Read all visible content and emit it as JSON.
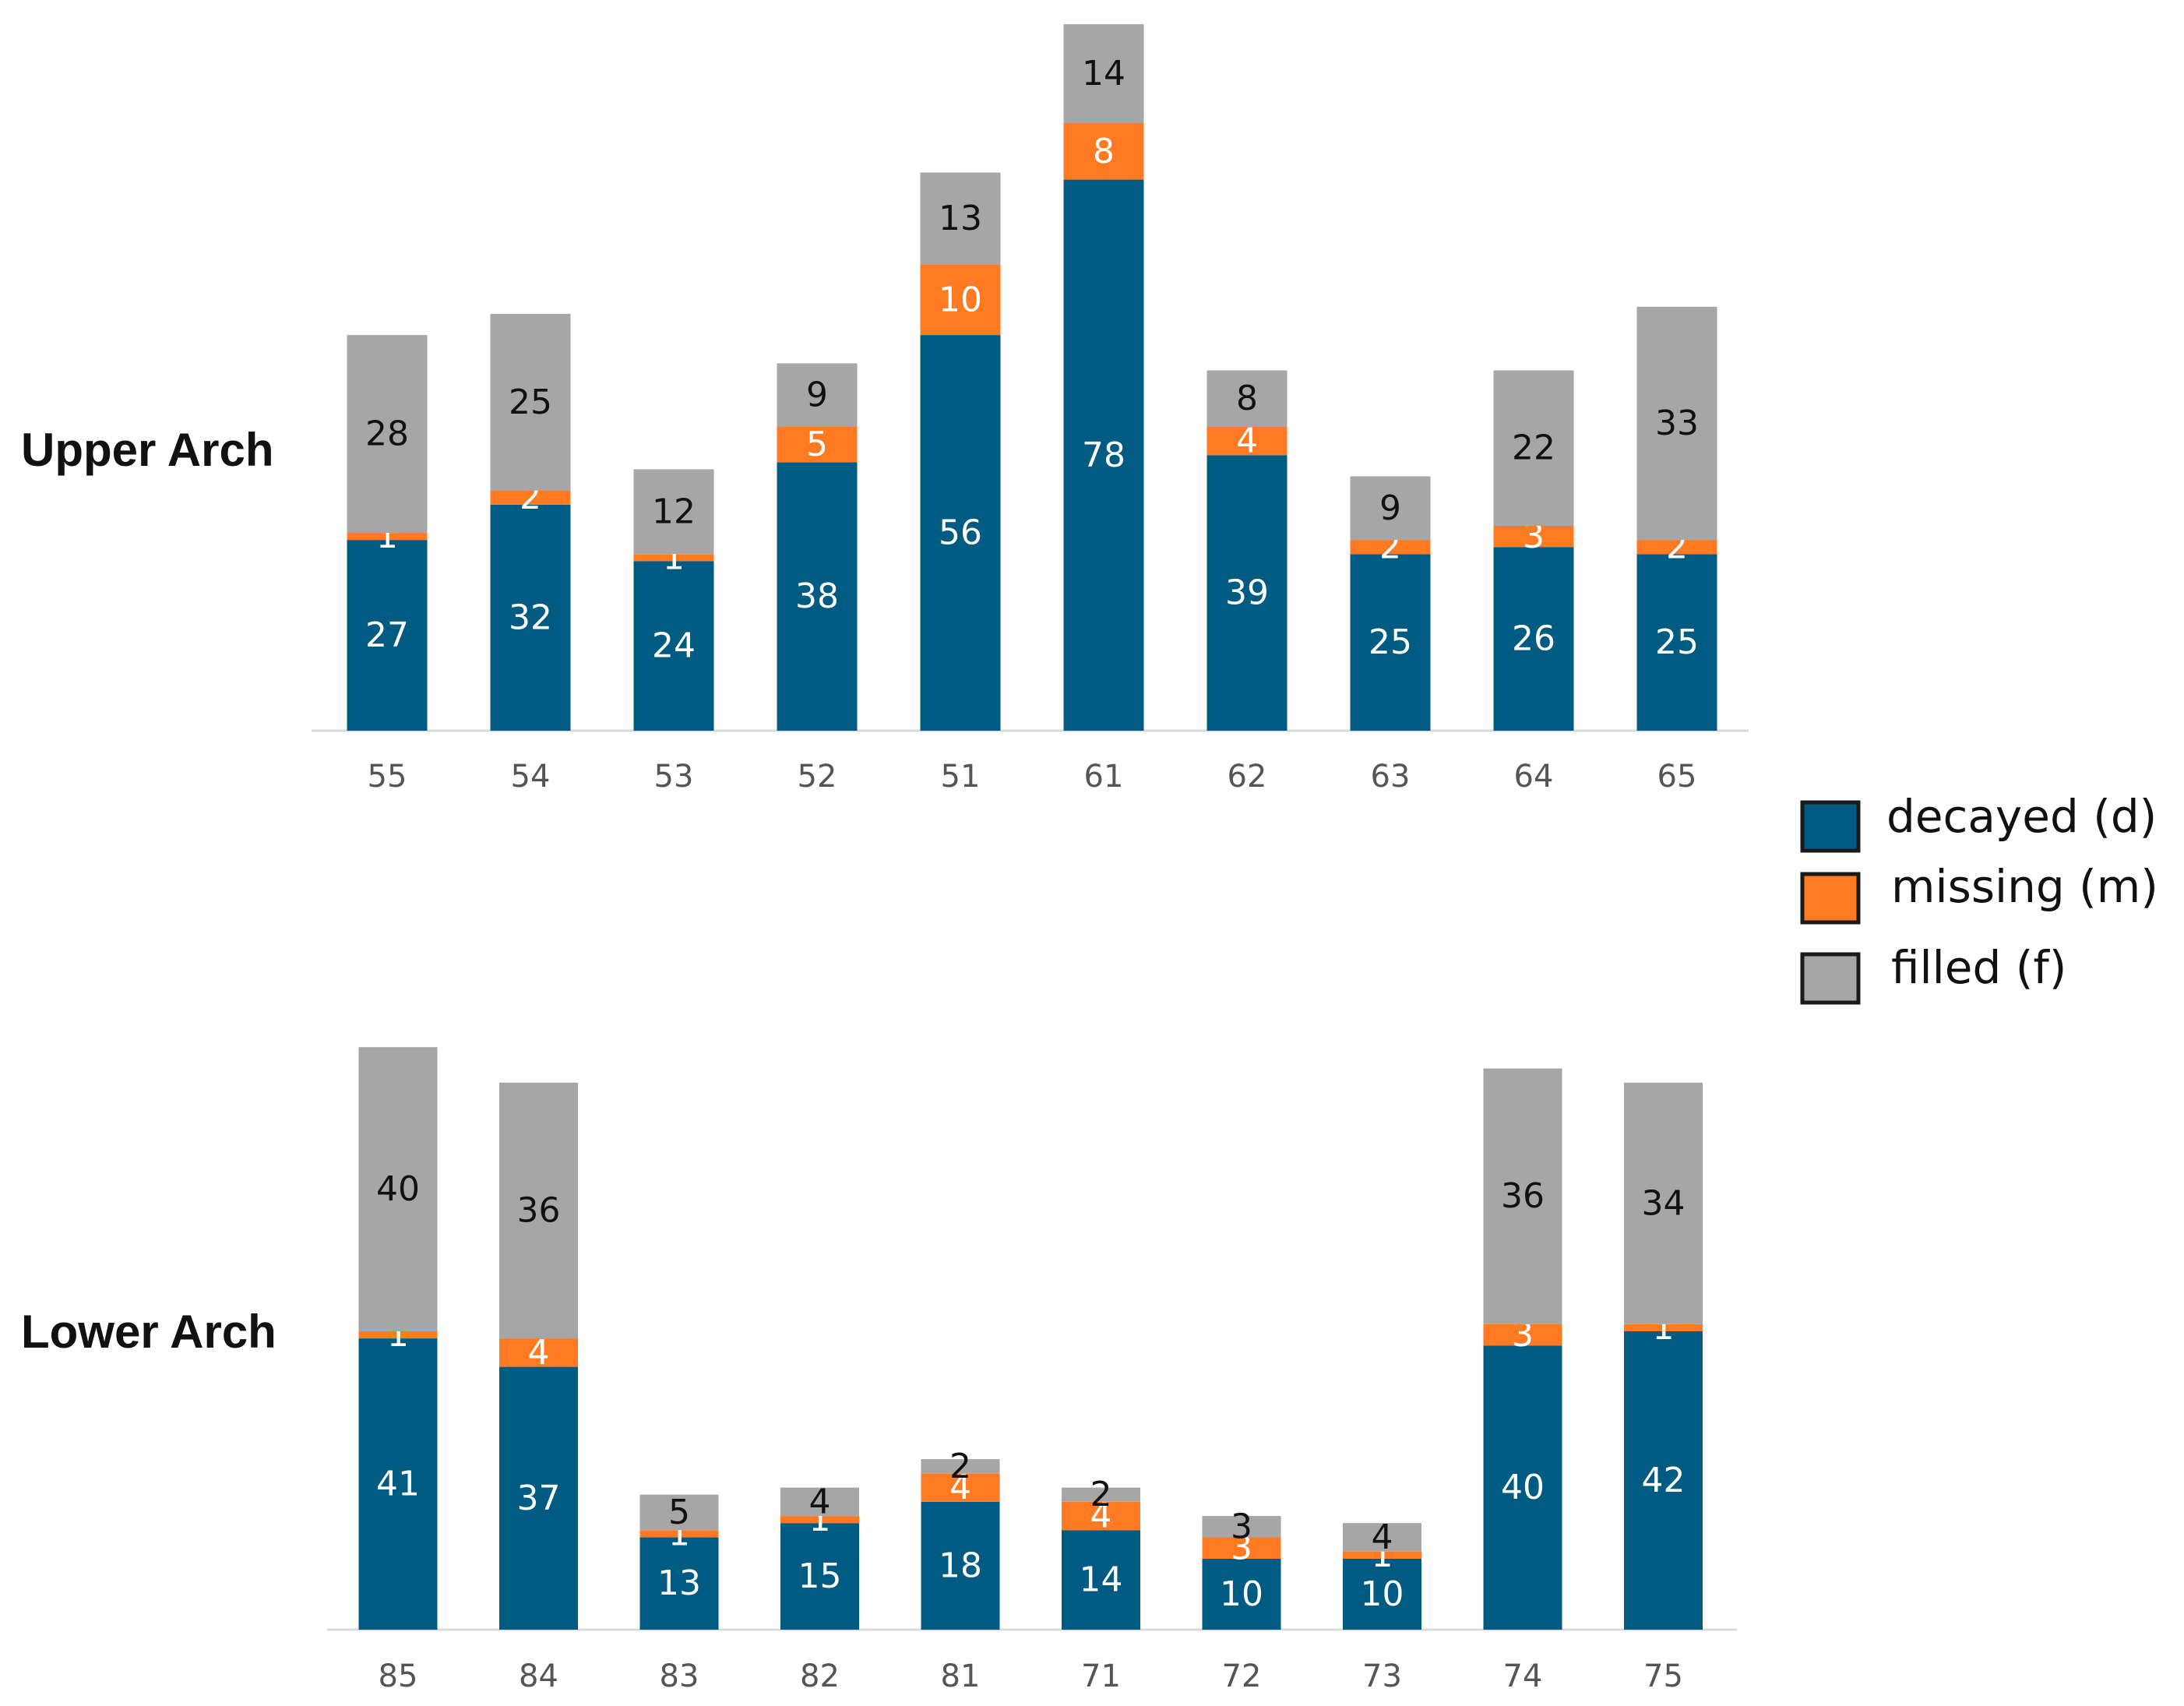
{
  "chart_data": [
    {
      "type": "bar",
      "stacked": true,
      "title": "Upper Arch",
      "categories": [
        "55",
        "54",
        "53",
        "52",
        "51",
        "61",
        "62",
        "63",
        "64",
        "65"
      ],
      "series": [
        {
          "name": "decayed (d)",
          "color": "#005B82",
          "values": [
            27,
            32,
            24,
            38,
            56,
            78,
            39,
            25,
            26,
            25
          ]
        },
        {
          "name": "missing (m)",
          "color": "#FF7A21",
          "values": [
            1,
            2,
            1,
            5,
            10,
            8,
            4,
            2,
            3,
            2
          ]
        },
        {
          "name": "filled (f)",
          "color": "#A6A6A6",
          "values": [
            28,
            25,
            12,
            9,
            13,
            14,
            8,
            9,
            22,
            33
          ]
        }
      ],
      "ylim": [
        0,
        101
      ],
      "grid": false
    },
    {
      "type": "bar",
      "stacked": true,
      "title": "Lower Arch",
      "categories": [
        "85",
        "84",
        "83",
        "82",
        "81",
        "71",
        "72",
        "73",
        "74",
        "75"
      ],
      "series": [
        {
          "name": "decayed (d)",
          "color": "#005B82",
          "values": [
            41,
            37,
            13,
            15,
            18,
            14,
            10,
            10,
            40,
            42
          ]
        },
        {
          "name": "missing (m)",
          "color": "#FF7A21",
          "values": [
            1,
            4,
            1,
            1,
            4,
            4,
            3,
            1,
            3,
            1
          ]
        },
        {
          "name": "filled (f)",
          "color": "#A6A6A6",
          "values": [
            40,
            36,
            5,
            4,
            2,
            2,
            3,
            4,
            36,
            34
          ]
        }
      ],
      "ylim": [
        0,
        84
      ],
      "grid": false
    }
  ],
  "legend": {
    "position": "right",
    "items": [
      {
        "label": "decayed (d)",
        "color": "#005B82"
      },
      {
        "label": "missing (m)",
        "color": "#FF7A21"
      },
      {
        "label": "filled (f)",
        "color": "#A6A6A6"
      }
    ]
  },
  "colors": {
    "decayed": "#005B82",
    "missing": "#FF7A21",
    "filled": "#A6A6A6",
    "axis": "#D9D9D9"
  }
}
